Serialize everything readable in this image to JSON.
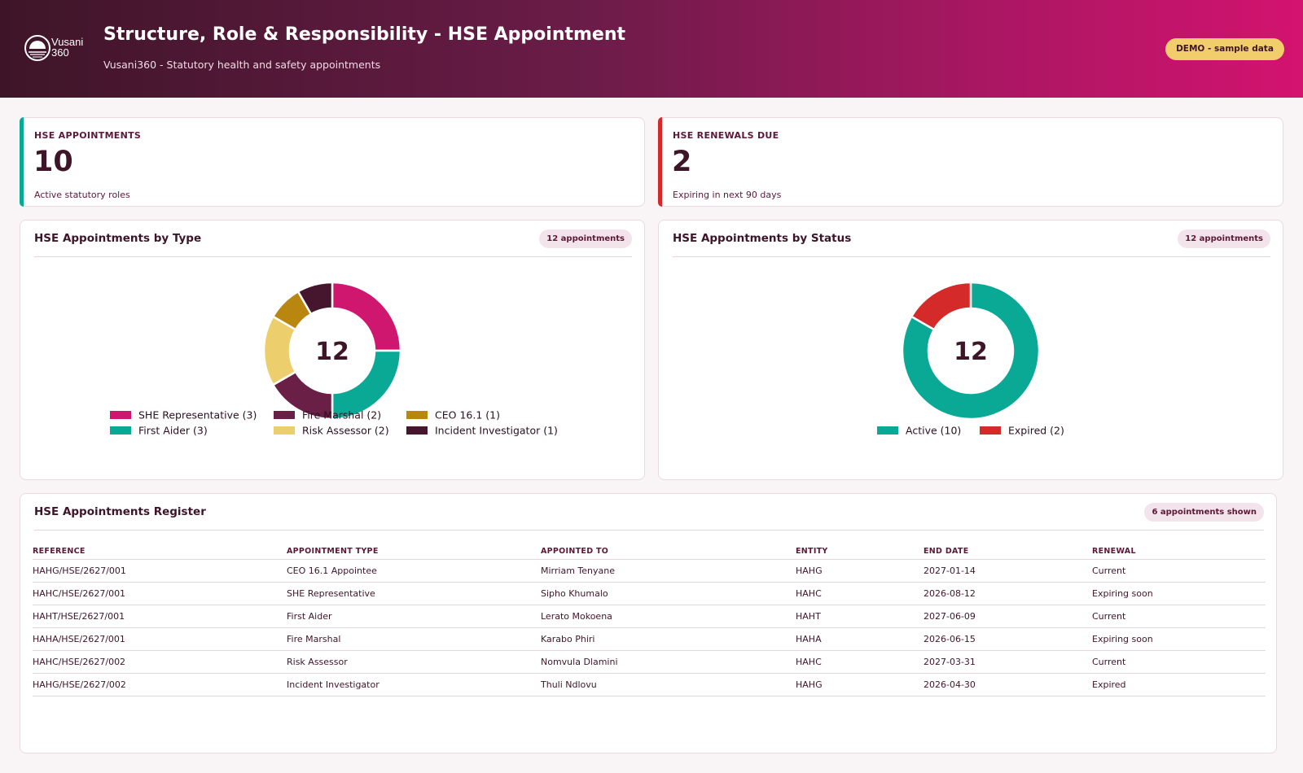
{
  "header": {
    "title": "Structure, Role & Responsibility - HSE Appointment",
    "subtitle": "Vusani360  -  Statutory health and safety appointments",
    "badge": "DEMO  -  sample data",
    "logo_text": "Vusani 360"
  },
  "kpis": [
    {
      "label": "HSE APPOINTMENTS",
      "value": "10",
      "sub": "Active statutory roles",
      "accent": "#0aa996"
    },
    {
      "label": "HSE RENEWALS DUE",
      "value": "2",
      "sub": "Expiring in next 90 days",
      "accent": "#d42a2a"
    }
  ],
  "panels": {
    "by_type": {
      "title": "HSE Appointments by Type",
      "pill": "12 appointments",
      "center": "12"
    },
    "by_status": {
      "title": "HSE Appointments by Status",
      "pill": "12 appointments",
      "center": "12"
    },
    "register": {
      "title": "HSE Appointments Register",
      "pill": "6 appointments shown"
    }
  },
  "chart_data": [
    {
      "type": "pie",
      "donut": true,
      "total": 12,
      "categories": [
        "SHE Representative",
        "First Aider",
        "Fire Marshal",
        "Risk Assessor",
        "CEO 16.1",
        "Incident Investigator"
      ],
      "values": [
        3,
        3,
        2,
        2,
        1,
        1
      ],
      "legend_labels": [
        "SHE Representative (3)",
        "First Aider (3)",
        "Fire Marshal (2)",
        "Risk Assessor (2)",
        "CEO 16.1 (1)",
        "Incident Investigator (1)"
      ],
      "colors": [
        "#cf1770",
        "#0aa996",
        "#6a1f47",
        "#ecce6c",
        "#b9860f",
        "#46162f"
      ],
      "legend": "bottom"
    },
    {
      "type": "pie",
      "donut": true,
      "total": 12,
      "categories": [
        "Active",
        "Expired"
      ],
      "values": [
        10,
        2
      ],
      "legend_labels": [
        "Active (10)",
        "Expired (2)"
      ],
      "colors": [
        "#0aa996",
        "#d42a2a"
      ],
      "legend": "bottom"
    }
  ],
  "register": {
    "columns": [
      "REFERENCE",
      "APPOINTMENT TYPE",
      "APPOINTED TO",
      "ENTITY",
      "END DATE",
      "RENEWAL"
    ],
    "rows": [
      [
        "HAHG/HSE/2627/001",
        "CEO 16.1 Appointee",
        "Mirriam Tenyane",
        "HAHG",
        "2027-01-14",
        "Current"
      ],
      [
        "HAHC/HSE/2627/001",
        "SHE Representative",
        "Sipho Khumalo",
        "HAHC",
        "2026-08-12",
        "Expiring soon"
      ],
      [
        "HAHT/HSE/2627/001",
        "First Aider",
        "Lerato Mokoena",
        "HAHT",
        "2027-06-09",
        "Current"
      ],
      [
        "HAHA/HSE/2627/001",
        "Fire Marshal",
        "Karabo Phiri",
        "HAHA",
        "2026-06-15",
        "Expiring soon"
      ],
      [
        "HAHC/HSE/2627/002",
        "Risk Assessor",
        "Nomvula Dlamini",
        "HAHC",
        "2027-03-31",
        "Current"
      ],
      [
        "HAHG/HSE/2627/002",
        "Incident Investigator",
        "Thuli Ndlovu",
        "HAHG",
        "2026-04-30",
        "Expired"
      ]
    ]
  }
}
